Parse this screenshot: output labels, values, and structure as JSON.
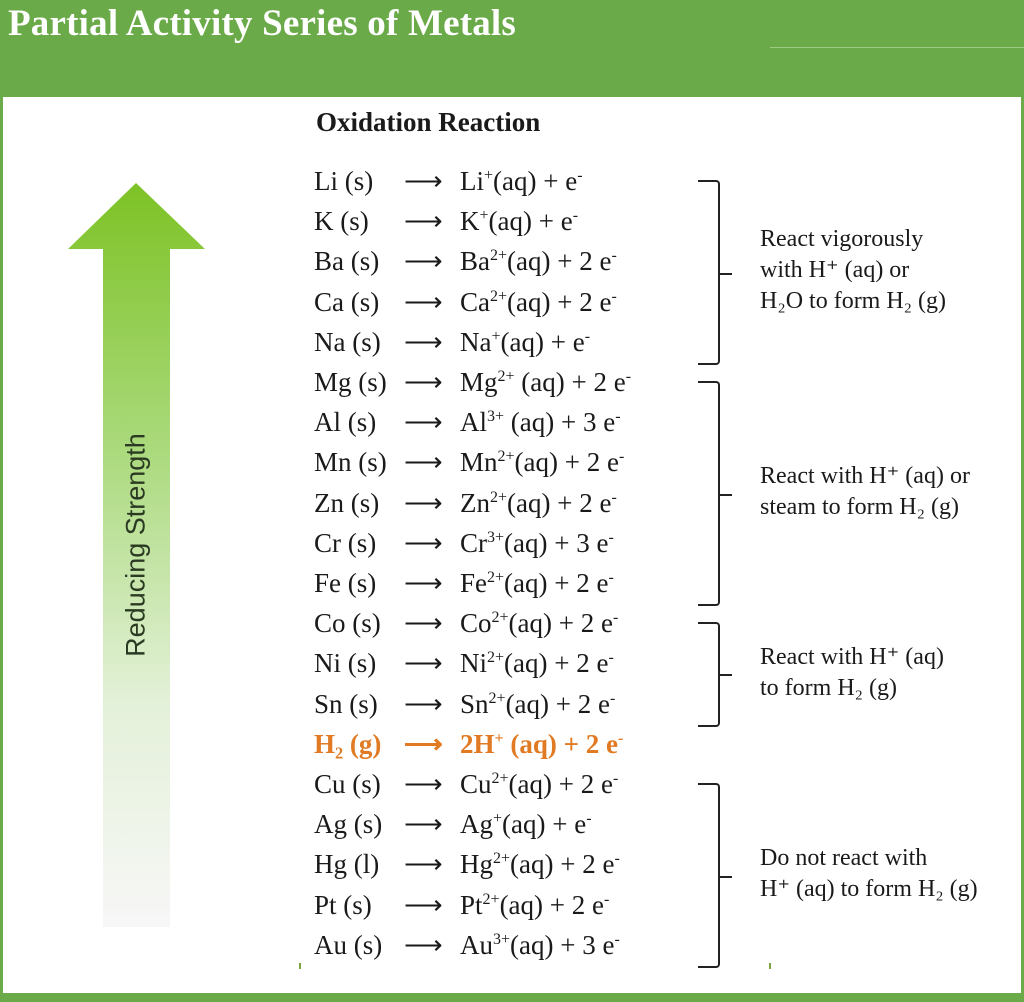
{
  "title": "Partial Activity Series of Metals",
  "heading": "Oxidation Reaction",
  "axis_label": "Reducing Strength",
  "colors": {
    "brand_green": "#6aaa48",
    "arrow_green": "#7dc225",
    "highlight": "#e07a23"
  },
  "arrow_symbol": "⟶",
  "reactions": [
    {
      "reactant": "Li (s)",
      "ion": "Li",
      "charge": "+",
      "tail": "(aq) + e",
      "e": "-"
    },
    {
      "reactant": "K (s)",
      "ion": "K",
      "charge": "+",
      "tail": "(aq) + e",
      "e": "-"
    },
    {
      "reactant": "Ba (s)",
      "ion": "Ba",
      "charge": "2+",
      "tail": "(aq) + 2 e",
      "e": "-"
    },
    {
      "reactant": "Ca (s)",
      "ion": "Ca",
      "charge": "2+",
      "tail": "(aq) + 2 e",
      "e": "-"
    },
    {
      "reactant": "Na (s)",
      "ion": "Na",
      "charge": "+",
      "tail": "(aq) + e",
      "e": "-"
    },
    {
      "reactant": "Mg (s)",
      "ion": "Mg",
      "charge": "2+",
      "tail": " (aq) + 2 e",
      "e": "-"
    },
    {
      "reactant": "Al (s)",
      "ion": "Al",
      "charge": "3+",
      "tail": " (aq) + 3 e",
      "e": "-"
    },
    {
      "reactant": "Mn (s)",
      "ion": "Mn",
      "charge": "2+",
      "tail": "(aq)  + 2 e",
      "e": "-"
    },
    {
      "reactant": "Zn (s)",
      "ion": "Zn",
      "charge": "2+",
      "tail": "(aq) + 2 e",
      "e": "-"
    },
    {
      "reactant": "Cr (s)",
      "ion": "Cr",
      "charge": "3+",
      "tail": "(aq) + 3 e",
      "e": "-"
    },
    {
      "reactant": "Fe (s)",
      "ion": "Fe",
      "charge": "2+",
      "tail": "(aq) + 2 e",
      "e": "-"
    },
    {
      "reactant": "Co (s)",
      "ion": "Co",
      "charge": "2+",
      "tail": "(aq) + 2 e",
      "e": "-"
    },
    {
      "reactant": "Ni (s)",
      "ion": "Ni",
      "charge": "2+",
      "tail": "(aq) + 2 e",
      "e": "-"
    },
    {
      "reactant": "Sn (s)",
      "ion": "Sn",
      "charge": "2+",
      "tail": "(aq) + 2 e",
      "e": "-"
    },
    {
      "reactant": "H₂ (g)",
      "ion": "2H",
      "charge": "+",
      "tail": " (aq)  + 2 e",
      "e": "-",
      "highlight": true
    },
    {
      "reactant": "Cu (s)",
      "ion": "Cu",
      "charge": "2+",
      "tail": "(aq) + 2 e",
      "e": "-"
    },
    {
      "reactant": "Ag (s)",
      "ion": "Ag",
      "charge": "+",
      "tail": "(aq) + e",
      "e": "-"
    },
    {
      "reactant": "Hg (l)",
      "ion": "Hg",
      "charge": "2+",
      "tail": "(aq) + 2 e",
      "e": "-"
    },
    {
      "reactant": "Pt (s)",
      "ion": "Pt",
      "charge": "2+",
      "tail": "(aq) + 2 e",
      "e": "-"
    },
    {
      "reactant": "Au (s)",
      "ion": "Au",
      "charge": "3+",
      "tail": "(aq) + 3 e",
      "e": "-"
    }
  ],
  "groups": [
    {
      "first": 0,
      "last": 4,
      "lines": [
        "React vigorously",
        "with H⁺ (aq) or",
        "H₂O to form H₂ (g)"
      ]
    },
    {
      "first": 5,
      "last": 10,
      "lines": [
        "React with H⁺ (aq) or",
        "steam to form H₂ (g)"
      ]
    },
    {
      "first": 11,
      "last": 13,
      "lines": [
        "React with H⁺ (aq)",
        "to form H₂ (g)"
      ]
    },
    {
      "first": 15,
      "last": 19,
      "lines": [
        "Do not react with",
        "H⁺ (aq) to form H₂ (g)"
      ]
    }
  ]
}
